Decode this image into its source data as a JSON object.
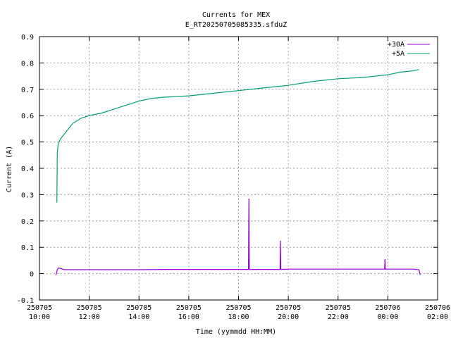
{
  "chart_data": {
    "type": "line",
    "title": "Currents for MEX",
    "subtitle": "E_RT20250705085335.sfduZ",
    "xlabel": "Time (yymmdd HH:MM)",
    "ylabel": "Current (A)",
    "xlim": [
      "2025-07-05 10:00",
      "2025-07-06 02:00"
    ],
    "ylim": [
      -0.1,
      0.9
    ],
    "grid": true,
    "legend_position": "top-right",
    "x_ticks": [
      {
        "date": "250705",
        "time": "10:00"
      },
      {
        "date": "250705",
        "time": "12:00"
      },
      {
        "date": "250705",
        "time": "14:00"
      },
      {
        "date": "250705",
        "time": "16:00"
      },
      {
        "date": "250705",
        "time": "18:00"
      },
      {
        "date": "250705",
        "time": "20:00"
      },
      {
        "date": "250705",
        "time": "22:00"
      },
      {
        "date": "250706",
        "time": "00:00"
      },
      {
        "date": "250706",
        "time": "02:00"
      }
    ],
    "y_ticks": [
      "-0.1",
      "0",
      "0.1",
      "0.2",
      "0.3",
      "0.4",
      "0.5",
      "0.6",
      "0.7",
      "0.8",
      "0.9"
    ],
    "y_tick_values": [
      -0.1,
      0,
      0.1,
      0.2,
      0.3,
      0.4,
      0.5,
      0.6,
      0.7,
      0.8,
      0.9
    ],
    "series": [
      {
        "name": "+30A",
        "color": "#9400d3",
        "points": [
          [
            "2025-07-05 10:40",
            -0.005
          ],
          [
            "2025-07-05 10:43",
            0.015
          ],
          [
            "2025-07-05 10:46",
            0.022
          ],
          [
            "2025-07-05 11:00",
            0.015
          ],
          [
            "2025-07-05 12:00",
            0.015
          ],
          [
            "2025-07-05 13:00",
            0.015
          ],
          [
            "2025-07-05 14:00",
            0.015
          ],
          [
            "2025-07-05 15:00",
            0.016
          ],
          [
            "2025-07-05 16:00",
            0.016
          ],
          [
            "2025-07-05 17:00",
            0.016
          ],
          [
            "2025-07-05 18:00",
            0.016
          ],
          [
            "2025-07-05 18:24",
            0.016
          ],
          [
            "2025-07-05 18:25",
            0.285
          ],
          [
            "2025-07-05 18:26",
            0.016
          ],
          [
            "2025-07-05 19:00",
            0.016
          ],
          [
            "2025-07-05 19:40",
            0.016
          ],
          [
            "2025-07-05 19:41",
            0.125
          ],
          [
            "2025-07-05 19:42",
            0.016
          ],
          [
            "2025-07-05 20:00",
            0.017
          ],
          [
            "2025-07-05 21:00",
            0.017
          ],
          [
            "2025-07-05 22:00",
            0.017
          ],
          [
            "2025-07-05 23:00",
            0.017
          ],
          [
            "2025-07-05 23:52",
            0.017
          ],
          [
            "2025-07-05 23:53",
            0.055
          ],
          [
            "2025-07-05 23:54",
            0.017
          ],
          [
            "2025-07-06 00:30",
            0.017
          ],
          [
            "2025-07-06 01:00",
            0.017
          ],
          [
            "2025-07-06 01:15",
            0.015
          ],
          [
            "2025-07-06 01:18",
            -0.005
          ]
        ]
      },
      {
        "name": "+5A",
        "color": "#009e73",
        "points": [
          [
            "2025-07-05 10:42",
            0.27
          ],
          [
            "2025-07-05 10:43",
            0.46
          ],
          [
            "2025-07-05 10:45",
            0.49
          ],
          [
            "2025-07-05 10:50",
            0.51
          ],
          [
            "2025-07-05 11:00",
            0.53
          ],
          [
            "2025-07-05 11:10",
            0.55
          ],
          [
            "2025-07-05 11:20",
            0.57
          ],
          [
            "2025-07-05 11:40",
            0.59
          ],
          [
            "2025-07-05 12:00",
            0.6
          ],
          [
            "2025-07-05 12:30",
            0.61
          ],
          [
            "2025-07-05 13:00",
            0.625
          ],
          [
            "2025-07-05 13:30",
            0.64
          ],
          [
            "2025-07-05 14:00",
            0.655
          ],
          [
            "2025-07-05 14:30",
            0.665
          ],
          [
            "2025-07-05 15:00",
            0.67
          ],
          [
            "2025-07-05 16:00",
            0.675
          ],
          [
            "2025-07-05 17:00",
            0.685
          ],
          [
            "2025-07-05 18:00",
            0.695
          ],
          [
            "2025-07-05 19:00",
            0.705
          ],
          [
            "2025-07-05 20:00",
            0.715
          ],
          [
            "2025-07-05 21:00",
            0.73
          ],
          [
            "2025-07-05 22:00",
            0.74
          ],
          [
            "2025-07-05 23:00",
            0.745
          ],
          [
            "2025-07-06 00:00",
            0.755
          ],
          [
            "2025-07-06 00:30",
            0.765
          ],
          [
            "2025-07-06 01:00",
            0.77
          ],
          [
            "2025-07-06 01:15",
            0.775
          ]
        ]
      }
    ]
  }
}
